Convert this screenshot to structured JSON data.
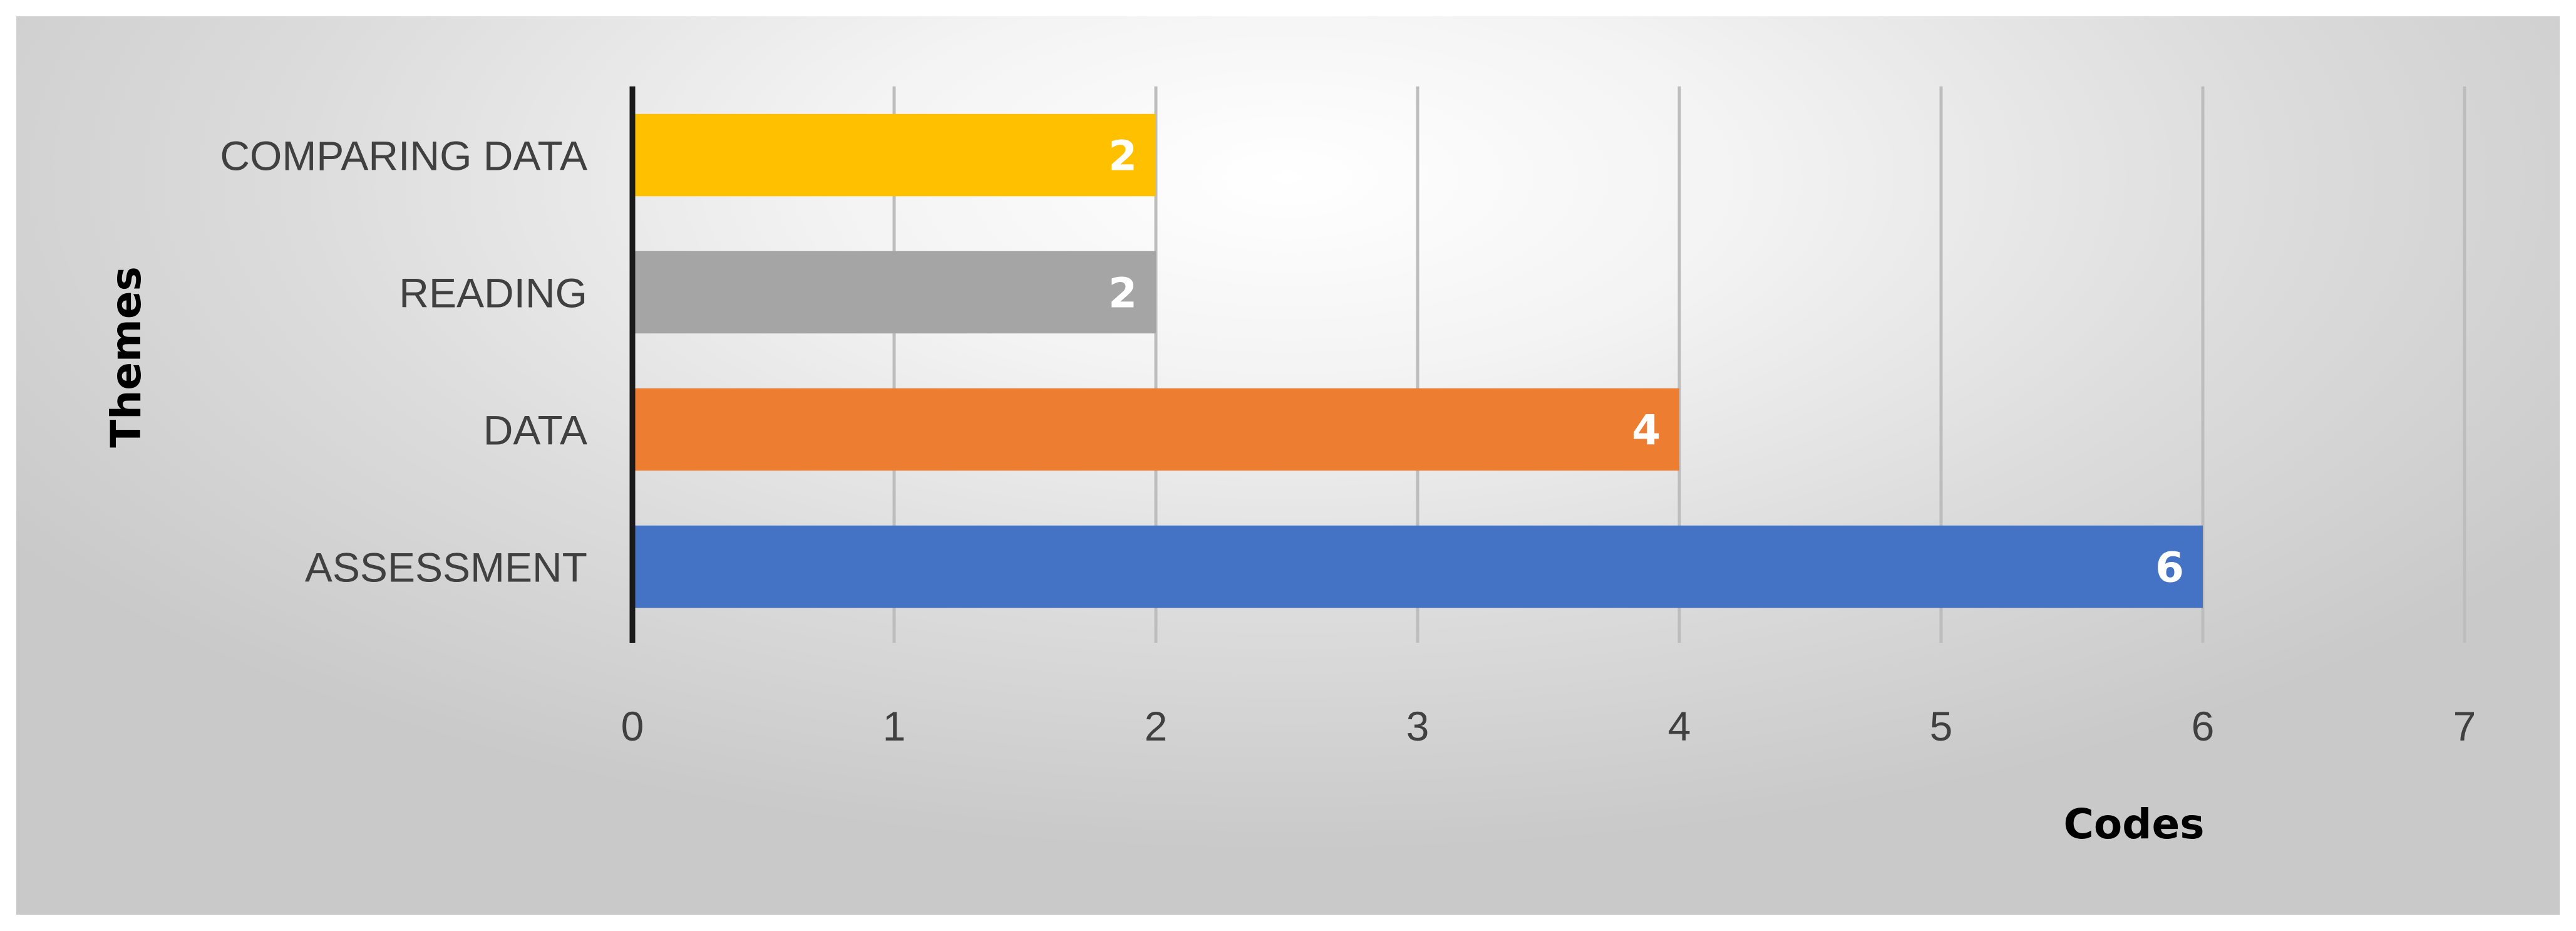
{
  "chart_data": {
    "type": "bar",
    "orientation": "horizontal",
    "categories": [
      "COMPARING DATA",
      "READING",
      "DATA",
      "ASSESSMENT"
    ],
    "values": [
      2,
      2,
      4,
      6
    ],
    "colors": [
      "#ffc000",
      "#a5a5a5",
      "#ed7d31",
      "#4472c4"
    ],
    "data_labels": [
      "2",
      "2",
      "4",
      "6"
    ],
    "xticks": [
      "0",
      "1",
      "2",
      "3",
      "4",
      "5",
      "6",
      "7"
    ],
    "xlim": [
      0,
      7
    ],
    "xlabel": "Codes",
    "ylabel": "Themes",
    "grid": true,
    "legend": "none"
  }
}
